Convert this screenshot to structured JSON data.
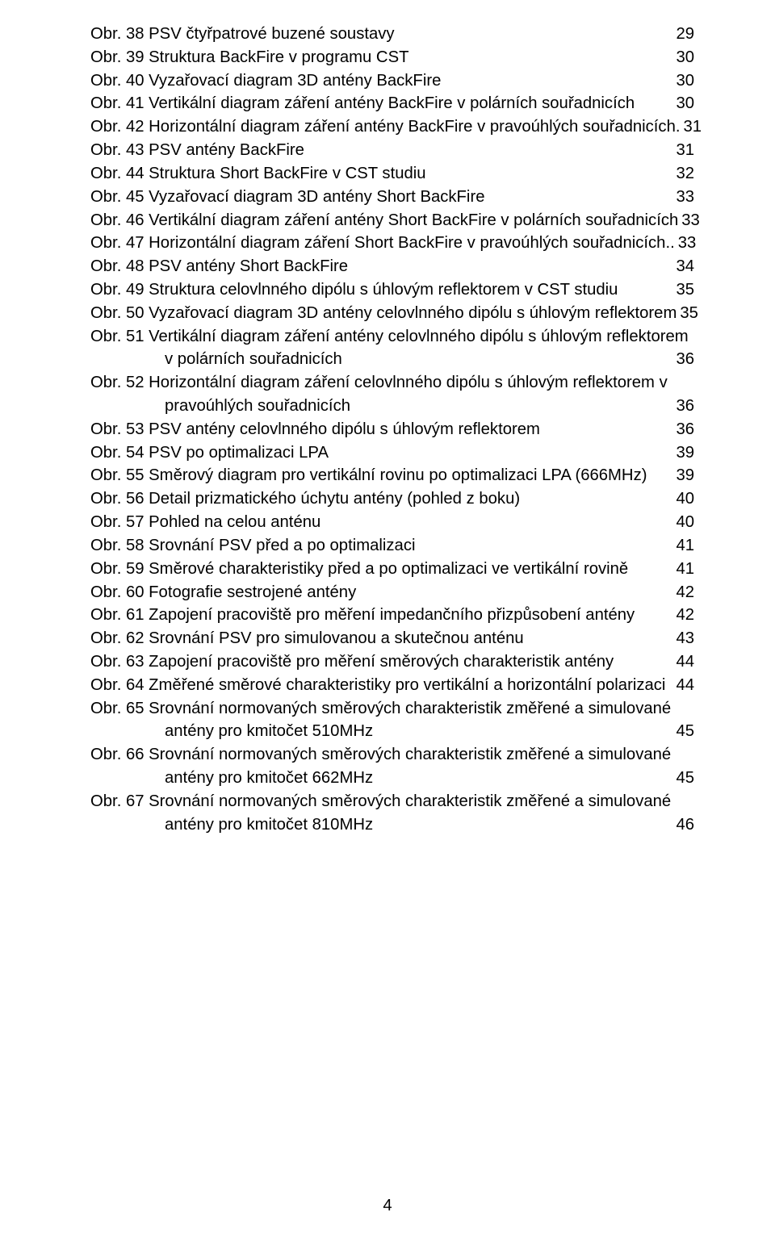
{
  "page_number": "4",
  "entries": [
    {
      "label": "Obr. 38 PSV čtyřpatrové buzené soustavy",
      "page": "29"
    },
    {
      "label": "Obr. 39 Struktura BackFire v programu CST",
      "page": "30"
    },
    {
      "label": "Obr. 40 Vyzařovací diagram 3D antény BackFire",
      "page": "30"
    },
    {
      "label": "Obr. 41 Vertikální diagram záření  antény BackFire  v polárních souřadnicích",
      "page": "30"
    },
    {
      "label": "Obr. 42 Horizontální diagram záření antény BackFire v pravoúhlých souřadnicích.",
      "page": "31",
      "noleader": true
    },
    {
      "label": "Obr. 43 PSV antény BackFire",
      "page": "31"
    },
    {
      "label": "Obr. 44 Struktura Short BackFire v CST studiu",
      "page": "32"
    },
    {
      "label": "Obr. 45 Vyzařovací diagram 3D antény Short BackFire",
      "page": "33"
    },
    {
      "label": "Obr. 46 Vertikální diagram záření  antény Short BackFire v polárních souřadnicích",
      "page": "33",
      "noleader": true
    },
    {
      "label": "Obr. 47 Horizontální diagram záření  Short BackFire v pravoúhlých souřadnicích",
      "page": "33",
      "sep": ".. "
    },
    {
      "label": "Obr. 48 PSV antény Short BackFire",
      "page": "34"
    },
    {
      "label": "Obr. 49 Struktura celovlnného dipólu s úhlovým reflektorem v CST studiu",
      "page": "35"
    },
    {
      "label": "Obr. 50 Vyzařovací diagram 3D antény celovlnného dipólu s úhlovým reflektorem",
      "page": "35",
      "sep": "  "
    },
    {
      "label": "Obr. 51 Vertikální diagram záření  antény celovlnného dipólu s úhlovým reflektorem",
      "nowpage": true,
      "cont": {
        "label": "v polárních souřadnicích",
        "page": "36"
      }
    },
    {
      "label": "Obr. 52 Horizontální diagram záření  celovlnného dipólu s úhlovým reflektorem v",
      "nowpage": true,
      "cont": {
        "label": "pravoúhlých souřadnicích",
        "page": "36"
      }
    },
    {
      "label": "Obr. 53 PSV antény celovlnného dipólu s úhlovým reflektorem",
      "page": "36"
    },
    {
      "label": "Obr. 54 PSV po optimalizaci LPA",
      "page": "39"
    },
    {
      "label": "Obr. 55 Směrový diagram pro vertikální rovinu  po optimalizaci LPA (666MHz)",
      "page": "39"
    },
    {
      "label": "Obr. 56 Detail prizmatického úchytu antény (pohled z boku)",
      "page": "40"
    },
    {
      "label": "Obr. 57 Pohled na celou anténu",
      "page": "40"
    },
    {
      "label": "Obr. 58 Srovnání PSV před a po optimalizaci",
      "page": "41"
    },
    {
      "label": "Obr. 59 Směrové charakteristiky před a po optimalizaci ve vertikální rovině",
      "page": "41"
    },
    {
      "label": "Obr. 60 Fotografie sestrojené antény",
      "page": "42"
    },
    {
      "label": "Obr. 61 Zapojení pracoviště pro měření impedančního přizpůsobení antény",
      "page": "42"
    },
    {
      "label": "Obr. 62 Srovnání PSV pro simulovanou a skutečnou anténu",
      "page": "43"
    },
    {
      "label": "Obr. 63 Zapojení pracoviště pro měření směrových charakteristik antény",
      "page": "44"
    },
    {
      "label": "Obr. 64 Změřené směrové charakteristiky pro vertikální a horizontální polarizaci",
      "page": "44"
    },
    {
      "label": "Obr. 65 Srovnání normovaných směrových charakteristik změřené a simulované",
      "nowpage": true,
      "cont": {
        "label": "antény pro kmitočet 510MHz",
        "page": "45"
      }
    },
    {
      "label": "Obr. 66 Srovnání normovaných směrových charakteristik změřené a simulované",
      "nowpage": true,
      "cont": {
        "label": "antény pro kmitočet 662MHz",
        "page": "45"
      }
    },
    {
      "label": "Obr. 67 Srovnání normovaných směrových charakteristik změřené a simulované",
      "nowpage": true,
      "cont": {
        "label": "antény pro kmitočet 810MHz",
        "page": "46"
      }
    }
  ]
}
